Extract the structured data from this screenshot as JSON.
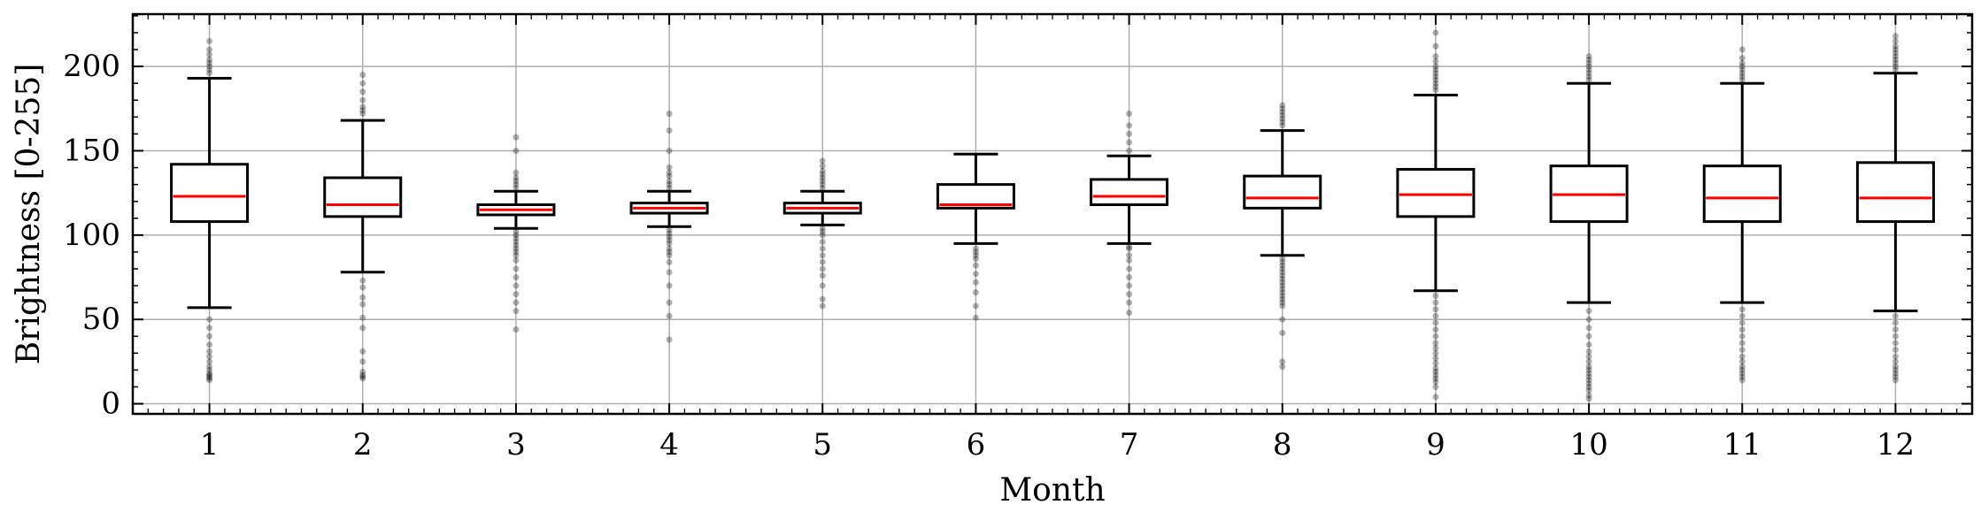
{
  "chart_data": {
    "type": "box",
    "xlabel": "Month",
    "ylabel": "Brightness [0-255]",
    "ylim": [
      -6,
      231
    ],
    "yticks": [
      0,
      50,
      100,
      150,
      200
    ],
    "grid": true,
    "categories": [
      "1",
      "2",
      "3",
      "4",
      "5",
      "6",
      "7",
      "8",
      "9",
      "10",
      "11",
      "12"
    ],
    "boxes": [
      {
        "whisker_low": 57,
        "q1": 108,
        "median": 123,
        "q3": 142,
        "whisker_high": 193,
        "outliers": [
          14,
          15,
          16,
          17,
          18,
          20,
          22,
          25,
          28,
          31,
          35,
          40,
          45,
          50,
          196,
          198,
          200,
          202,
          204,
          207,
          210,
          215
        ]
      },
      {
        "whisker_low": 78,
        "q1": 111,
        "median": 118,
        "q3": 134,
        "whisker_high": 168,
        "outliers": [
          15,
          16,
          17,
          19,
          25,
          31,
          45,
          51,
          59,
          63,
          69,
          73,
          172,
          174,
          176,
          180,
          185,
          190,
          195
        ]
      },
      {
        "whisker_low": 104,
        "q1": 112,
        "median": 115,
        "q3": 118,
        "whisker_high": 126,
        "outliers": [
          44,
          55,
          60,
          65,
          70,
          75,
          80,
          85,
          88,
          90,
          92,
          94,
          96,
          98,
          100,
          102,
          128,
          130,
          132,
          134,
          137,
          150,
          158
        ]
      },
      {
        "whisker_low": 105,
        "q1": 113,
        "median": 116,
        "q3": 119,
        "whisker_high": 126,
        "outliers": [
          38,
          52,
          60,
          70,
          78,
          84,
          88,
          90,
          92,
          95,
          97,
          99,
          101,
          103,
          128,
          130,
          132,
          135,
          137,
          140,
          150,
          162,
          172
        ]
      },
      {
        "whisker_low": 106,
        "q1": 113,
        "median": 116,
        "q3": 119,
        "whisker_high": 126,
        "outliers": [
          58,
          62,
          70,
          76,
          80,
          84,
          88,
          92,
          96,
          100,
          102,
          104,
          128,
          130,
          132,
          134,
          136,
          138,
          141,
          144
        ]
      },
      {
        "whisker_low": 95,
        "q1": 116,
        "median": 118,
        "q3": 130,
        "whisker_high": 148,
        "outliers": [
          51,
          58,
          66,
          72,
          77,
          82,
          86,
          88,
          90,
          92
        ]
      },
      {
        "whisker_low": 95,
        "q1": 118,
        "median": 123,
        "q3": 133,
        "whisker_high": 147,
        "outliers": [
          54,
          60,
          65,
          70,
          75,
          80,
          85,
          88,
          92,
          93,
          150,
          155,
          160,
          165,
          172
        ]
      },
      {
        "whisker_low": 88,
        "q1": 116,
        "median": 122,
        "q3": 135,
        "whisker_high": 162,
        "outliers": [
          22,
          25,
          42,
          50,
          58,
          60,
          62,
          64,
          66,
          68,
          70,
          72,
          74,
          76,
          78,
          80,
          82,
          84,
          86,
          165,
          167,
          169,
          171,
          173,
          175,
          177
        ]
      },
      {
        "whisker_low": 67,
        "q1": 111,
        "median": 124,
        "q3": 139,
        "whisker_high": 183,
        "outliers": [
          4,
          10,
          13,
          15,
          17,
          19,
          21,
          24,
          27,
          30,
          33,
          36,
          40,
          44,
          48,
          52,
          56,
          60,
          64,
          186,
          188,
          190,
          192,
          194,
          196,
          198,
          200,
          203,
          206,
          212,
          220
        ]
      },
      {
        "whisker_low": 60,
        "q1": 108,
        "median": 124,
        "q3": 141,
        "whisker_high": 190,
        "outliers": [
          3,
          5,
          8,
          10,
          12,
          14,
          16,
          18,
          20,
          22,
          25,
          28,
          31,
          35,
          40,
          45,
          50,
          55,
          192,
          194,
          196,
          198,
          200,
          202,
          204,
          206
        ]
      },
      {
        "whisker_low": 60,
        "q1": 108,
        "median": 122,
        "q3": 141,
        "whisker_high": 190,
        "outliers": [
          14,
          16,
          18,
          20,
          22,
          25,
          28,
          32,
          36,
          40,
          44,
          48,
          52,
          56,
          192,
          194,
          196,
          198,
          200,
          202,
          205,
          210
        ]
      },
      {
        "whisker_low": 55,
        "q1": 108,
        "median": 122,
        "q3": 143,
        "whisker_high": 196,
        "outliers": [
          14,
          16,
          18,
          20,
          22,
          25,
          28,
          32,
          36,
          40,
          44,
          48,
          52,
          198,
          200,
          202,
          204,
          206,
          208,
          210,
          212,
          215,
          218
        ]
      }
    ]
  },
  "colors": {
    "box": "#000000",
    "median": "#ff0000",
    "grid": "#b0b0b0",
    "outlier": "#000000"
  }
}
